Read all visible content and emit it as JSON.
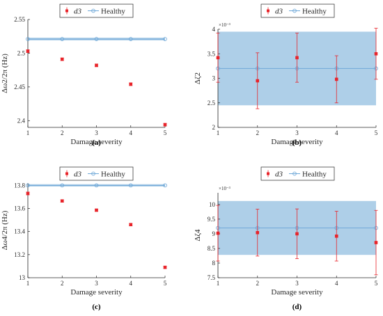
{
  "colors": {
    "d3": "#e8242a",
    "healthy_line": "#6fa8d8",
    "healthy_band": "#aecfe8",
    "axis": "#262626"
  },
  "chart_data": [
    {
      "type": "scatter",
      "caption": "(a)",
      "xlabel": "Damage severity",
      "ylabel": "Δω2/2π (Hz)",
      "xlim": [
        1,
        5
      ],
      "ylim": [
        2.39,
        2.55
      ],
      "xticks": [
        "1",
        "2",
        "3",
        "4",
        "5"
      ],
      "yticks": [
        {
          "value": 2.4,
          "label": "2.4"
        },
        {
          "value": 2.45,
          "label": "2.45"
        },
        {
          "value": 2.5,
          "label": "2.5"
        },
        {
          "value": 2.55,
          "label": "2.55"
        }
      ],
      "multiplier": "",
      "legend": {
        "d3_label": "d3",
        "healthy_label": "Healthy",
        "position": "top"
      },
      "series": [
        {
          "name": "d3",
          "x": [
            1,
            2,
            3,
            4,
            5
          ],
          "y": [
            2.503,
            2.491,
            2.482,
            2.454,
            2.394
          ],
          "err": [
            0.002,
            0.002,
            0.002,
            0.002,
            0.002
          ]
        },
        {
          "name": "Healthy",
          "x": [
            1,
            2,
            3,
            4,
            5
          ],
          "y": [
            2.521,
            2.521,
            2.521,
            2.521,
            2.521
          ],
          "band": [
            2.519,
            2.523
          ]
        }
      ]
    },
    {
      "type": "scatter",
      "caption": "(b)",
      "xlabel": "Damage severity",
      "ylabel": "Δζ2",
      "xlim": [
        1,
        5
      ],
      "ylim": [
        2.0,
        4.0
      ],
      "xticks": [
        "1",
        "2",
        "3",
        "4",
        "5"
      ],
      "yticks": [
        {
          "value": 2.0,
          "label": "2"
        },
        {
          "value": 2.5,
          "label": "2.5"
        },
        {
          "value": 3.0,
          "label": "3"
        },
        {
          "value": 3.5,
          "label": "3.5"
        },
        {
          "value": 4.0,
          "label": "4"
        }
      ],
      "multiplier": "×10⁻³",
      "legend": {
        "d3_label": "d3",
        "healthy_label": "Healthy",
        "position": "top"
      },
      "series": [
        {
          "name": "d3",
          "x": [
            1,
            2,
            3,
            4,
            5
          ],
          "y": [
            3.42,
            2.95,
            3.42,
            2.98,
            3.5
          ],
          "err": [
            0.5,
            0.57,
            0.5,
            0.48,
            0.52
          ]
        },
        {
          "name": "Healthy",
          "x": [
            1,
            2,
            3,
            4,
            5
          ],
          "y": [
            3.2,
            3.2,
            3.2,
            3.2,
            3.2
          ],
          "band": [
            2.45,
            3.95
          ]
        }
      ]
    },
    {
      "type": "scatter",
      "caption": "(c)",
      "xlabel": "Damage severity",
      "ylabel": "Δω4/2π (Hz)",
      "xlim": [
        1,
        5
      ],
      "ylim": [
        13.0,
        13.82
      ],
      "xticks": [
        "1",
        "2",
        "3",
        "4",
        "5"
      ],
      "yticks": [
        {
          "value": 13.0,
          "label": "13"
        },
        {
          "value": 13.2,
          "label": "13.2"
        },
        {
          "value": 13.4,
          "label": "13.4"
        },
        {
          "value": 13.6,
          "label": "13.6"
        },
        {
          "value": 13.8,
          "label": "13.8"
        }
      ],
      "multiplier": "",
      "legend": {
        "d3_label": "d3",
        "healthy_label": "Healthy",
        "position": "top"
      },
      "series": [
        {
          "name": "d3",
          "x": [
            1,
            2,
            3,
            4,
            5
          ],
          "y": [
            13.73,
            13.665,
            13.585,
            13.46,
            13.09
          ],
          "err": [
            0.012,
            0.01,
            0.01,
            0.01,
            0.01
          ]
        },
        {
          "name": "Healthy",
          "x": [
            1,
            2,
            3,
            4,
            5
          ],
          "y": [
            13.8,
            13.8,
            13.8,
            13.8,
            13.8
          ],
          "band": [
            13.79,
            13.81
          ]
        }
      ]
    },
    {
      "type": "scatter",
      "caption": "(d)",
      "xlabel": "Damage severity",
      "ylabel": "Δζ4",
      "xlim": [
        1,
        5
      ],
      "ylim": [
        7.5,
        10.4
      ],
      "xticks": [
        "1",
        "2",
        "3",
        "4",
        "5"
      ],
      "yticks": [
        {
          "value": 7.5,
          "label": "7.5"
        },
        {
          "value": 8.0,
          "label": "8"
        },
        {
          "value": 8.5,
          "label": "8.5"
        },
        {
          "value": 9.0,
          "label": "9"
        },
        {
          "value": 9.5,
          "label": "9.5"
        },
        {
          "value": 10.0,
          "label": "10"
        }
      ],
      "multiplier": "×10⁻³",
      "legend": {
        "d3_label": "d3",
        "healthy_label": "Healthy",
        "position": "top"
      },
      "series": [
        {
          "name": "d3",
          "x": [
            1,
            2,
            3,
            4,
            5
          ],
          "y": [
            9.02,
            9.04,
            9.0,
            8.92,
            8.7
          ],
          "err": [
            0.95,
            0.8,
            0.85,
            0.85,
            1.1
          ]
        },
        {
          "name": "Healthy",
          "x": [
            1,
            2,
            3,
            4,
            5
          ],
          "y": [
            9.2,
            9.2,
            9.2,
            9.2,
            9.2
          ],
          "band": [
            8.28,
            10.12
          ]
        }
      ]
    }
  ]
}
